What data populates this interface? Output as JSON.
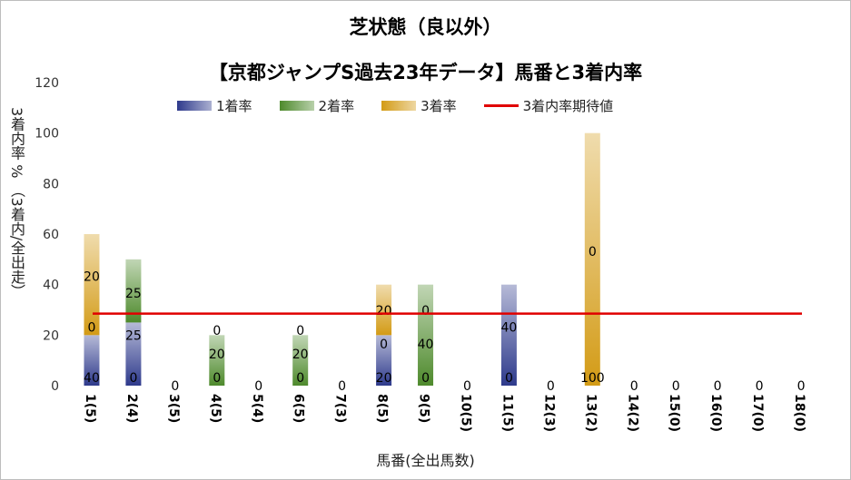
{
  "chart_data": {
    "type": "bar",
    "stacked": true,
    "title": "芝状態（良以外）",
    "subtitle": "【京都ジャンプS過去23年データ】馬番と3着内率",
    "xlabel": "馬番(全出馬数)",
    "ylabel": "3着内率 %  （3着内/全出走）",
    "ylim": [
      0,
      120
    ],
    "yticks": [
      "0",
      "20",
      "40",
      "60",
      "80",
      "100",
      "120"
    ],
    "categories": [
      "1(5)",
      "2(4)",
      "3(5)",
      "4(5)",
      "5(4)",
      "6(5)",
      "7(3)",
      "8(5)",
      "9(5)",
      "10(5)",
      "11(5)",
      "12(3)",
      "13(2)",
      "14(2)",
      "15(0)",
      "16(0)",
      "17(0)",
      "18(0)"
    ],
    "series": [
      {
        "name": "1着率",
        "color": "#2e3a8c",
        "values": [
          20,
          25,
          0,
          0,
          0,
          0,
          0,
          20,
          0,
          0,
          40,
          0,
          0,
          0,
          0,
          0,
          0,
          0
        ]
      },
      {
        "name": "2着率",
        "color": "#4e8a2c",
        "values": [
          0,
          25,
          0,
          20,
          0,
          20,
          0,
          0,
          40,
          0,
          0,
          0,
          0,
          0,
          0,
          0,
          0,
          0
        ]
      },
      {
        "name": "3着率",
        "color": "#d39b16",
        "values": [
          40,
          0,
          0,
          0,
          0,
          0,
          0,
          20,
          0,
          0,
          0,
          0,
          100,
          0,
          0,
          0,
          0,
          0
        ]
      }
    ],
    "data_labels": [
      [
        "40",
        "0",
        "20"
      ],
      [
        "0",
        "25",
        "25"
      ],
      [
        "0"
      ],
      [
        "0",
        "20",
        "0"
      ],
      [
        "0"
      ],
      [
        "0",
        "20",
        "0"
      ],
      [
        "0"
      ],
      [
        "20",
        "0",
        "20"
      ],
      [
        "0",
        "40",
        "0"
      ],
      [
        "0"
      ],
      [
        "0",
        "40"
      ],
      [
        "0"
      ],
      [
        "100",
        "0"
      ],
      [
        "0"
      ],
      [
        "0"
      ],
      [
        "0"
      ],
      [
        "0"
      ],
      [
        "0"
      ]
    ],
    "expected_line": {
      "name": "3着内率期待値",
      "color": "#e00000",
      "value": 28.5
    },
    "legend_position": "top"
  }
}
